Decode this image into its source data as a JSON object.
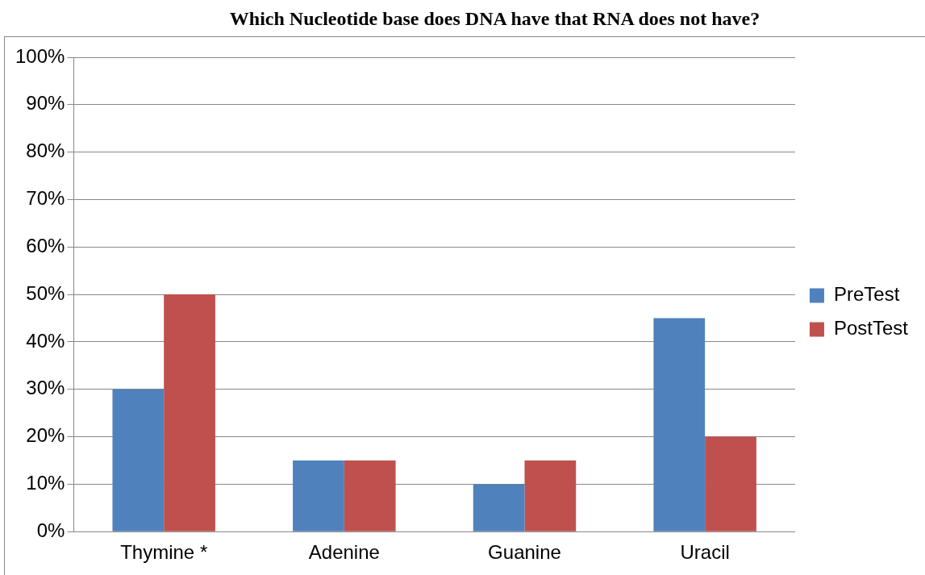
{
  "chart_data": {
    "type": "bar",
    "title": "Which Nucleotide base does DNA have that RNA does not have?",
    "categories": [
      "Thymine *",
      "Adenine",
      "Guanine",
      "Uracil"
    ],
    "series": [
      {
        "name": "PreTest",
        "color": "#4f81bd",
        "values": [
          30,
          15,
          10,
          45
        ]
      },
      {
        "name": "PostTest",
        "color": "#c0504d",
        "values": [
          50,
          15,
          15,
          20
        ]
      }
    ],
    "ylim": [
      0,
      100
    ],
    "yticks": [
      {
        "value": 0,
        "label": "0%"
      },
      {
        "value": 10,
        "label": "10%"
      },
      {
        "value": 20,
        "label": "20%"
      },
      {
        "value": 30,
        "label": "30%"
      },
      {
        "value": 40,
        "label": "40%"
      },
      {
        "value": 50,
        "label": "50%"
      },
      {
        "value": 60,
        "label": "60%"
      },
      {
        "value": 70,
        "label": "70%"
      },
      {
        "value": 80,
        "label": "80%"
      },
      {
        "value": 90,
        "label": "90%"
      },
      {
        "value": 100,
        "label": "100%"
      }
    ],
    "grid": "y",
    "legend": "right"
  }
}
